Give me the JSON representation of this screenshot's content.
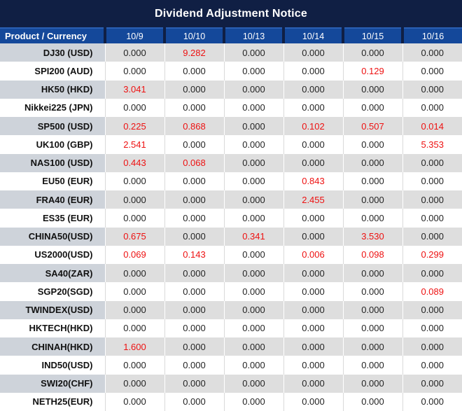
{
  "title": "Dividend Adjustment Notice",
  "colors": {
    "title_navy": "#101f44",
    "header_blue": "#14489a",
    "header_top_line_blue": "#2a5fb4",
    "stripe_label_gray": "#ced3da",
    "stripe_value_gray": "#dedede",
    "highlight_red": "#ee1111",
    "value_black": "#242424"
  },
  "table": {
    "zero_value": "0.000",
    "header": [
      "Product / Currency",
      "10/9",
      "10/10",
      "10/13",
      "10/14",
      "10/15",
      "10/16"
    ],
    "rows": [
      {
        "product": "DJ30 (USD)",
        "values": [
          "0.000",
          "9.282",
          "0.000",
          "0.000",
          "0.000",
          "0.000"
        ]
      },
      {
        "product": "SPI200 (AUD)",
        "values": [
          "0.000",
          "0.000",
          "0.000",
          "0.000",
          "0.129",
          "0.000"
        ]
      },
      {
        "product": "HK50 (HKD)",
        "values": [
          "3.041",
          "0.000",
          "0.000",
          "0.000",
          "0.000",
          "0.000"
        ]
      },
      {
        "product": "Nikkei225 (JPN)",
        "values": [
          "0.000",
          "0.000",
          "0.000",
          "0.000",
          "0.000",
          "0.000"
        ]
      },
      {
        "product": "SP500 (USD)",
        "values": [
          "0.225",
          "0.868",
          "0.000",
          "0.102",
          "0.507",
          "0.014"
        ]
      },
      {
        "product": "UK100 (GBP)",
        "values": [
          "2.541",
          "0.000",
          "0.000",
          "0.000",
          "0.000",
          "5.353"
        ]
      },
      {
        "product": "NAS100 (USD)",
        "values": [
          "0.443",
          "0.068",
          "0.000",
          "0.000",
          "0.000",
          "0.000"
        ]
      },
      {
        "product": "EU50 (EUR)",
        "values": [
          "0.000",
          "0.000",
          "0.000",
          "0.843",
          "0.000",
          "0.000"
        ]
      },
      {
        "product": "FRA40 (EUR)",
        "values": [
          "0.000",
          "0.000",
          "0.000",
          "2.455",
          "0.000",
          "0.000"
        ]
      },
      {
        "product": "ES35 (EUR)",
        "values": [
          "0.000",
          "0.000",
          "0.000",
          "0.000",
          "0.000",
          "0.000"
        ]
      },
      {
        "product": "CHINA50(USD)",
        "values": [
          "0.675",
          "0.000",
          "0.341",
          "0.000",
          "3.530",
          "0.000"
        ]
      },
      {
        "product": "US2000(USD)",
        "values": [
          "0.069",
          "0.143",
          "0.000",
          "0.006",
          "0.098",
          "0.299"
        ]
      },
      {
        "product": "SA40(ZAR)",
        "values": [
          "0.000",
          "0.000",
          "0.000",
          "0.000",
          "0.000",
          "0.000"
        ]
      },
      {
        "product": "SGP20(SGD)",
        "values": [
          "0.000",
          "0.000",
          "0.000",
          "0.000",
          "0.000",
          "0.089"
        ]
      },
      {
        "product": "TWINDEX(USD)",
        "values": [
          "0.000",
          "0.000",
          "0.000",
          "0.000",
          "0.000",
          "0.000"
        ]
      },
      {
        "product": "HKTECH(HKD)",
        "values": [
          "0.000",
          "0.000",
          "0.000",
          "0.000",
          "0.000",
          "0.000"
        ]
      },
      {
        "product": "CHINAH(HKD)",
        "values": [
          "1.600",
          "0.000",
          "0.000",
          "0.000",
          "0.000",
          "0.000"
        ]
      },
      {
        "product": "IND50(USD)",
        "values": [
          "0.000",
          "0.000",
          "0.000",
          "0.000",
          "0.000",
          "0.000"
        ]
      },
      {
        "product": "SWI20(CHF)",
        "values": [
          "0.000",
          "0.000",
          "0.000",
          "0.000",
          "0.000",
          "0.000"
        ]
      },
      {
        "product": "NETH25(EUR)",
        "values": [
          "0.000",
          "0.000",
          "0.000",
          "0.000",
          "0.000",
          "0.000"
        ]
      }
    ]
  }
}
